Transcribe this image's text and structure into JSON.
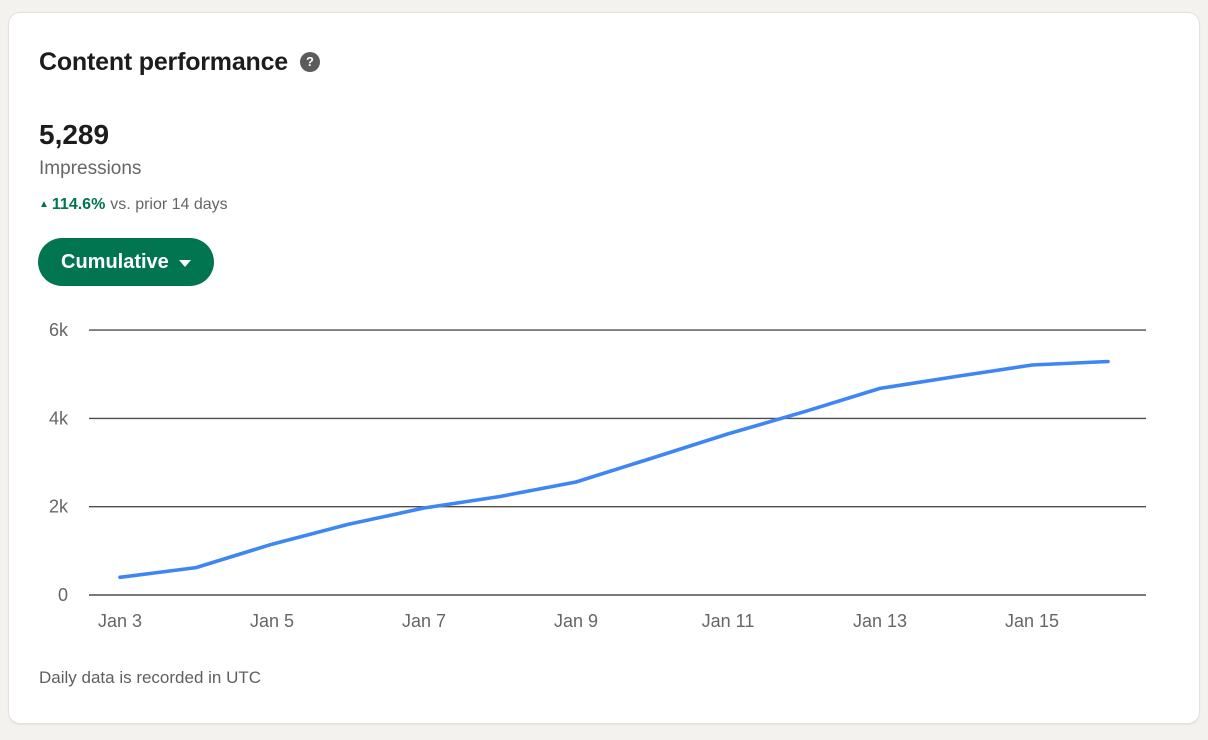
{
  "card": {
    "title": "Content performance",
    "help_icon_glyph": "?",
    "metric": {
      "value": "5,289",
      "label": "Impressions"
    },
    "change": {
      "arrow_icon": "▲",
      "percent": "114.6%",
      "caption": "vs. prior 14 days"
    },
    "view_selector": {
      "label": "Cumulative"
    },
    "footnote": "Daily data is recorded in UTC"
  },
  "colors": {
    "page_bg": "#f4f2ee",
    "card_bg": "#ffffff",
    "accent_green": "#01754f",
    "line_blue": "#3e86f4",
    "grid_line": "#4f4e4a",
    "muted_text": "#666666",
    "heading_text": "#1c1c1c"
  },
  "chart_data": {
    "type": "line",
    "series_name": "Impressions (cumulative)",
    "x": [
      "Jan 3",
      "Jan 4",
      "Jan 5",
      "Jan 6",
      "Jan 7",
      "Jan 8",
      "Jan 9",
      "Jan 10",
      "Jan 11",
      "Jan 12",
      "Jan 13",
      "Jan 14",
      "Jan 15",
      "Jan 16"
    ],
    "values": [
      400,
      620,
      1150,
      1600,
      1970,
      2230,
      2560,
      3100,
      3650,
      4150,
      4680,
      4950,
      5210,
      5289
    ],
    "x_tick_labels": [
      "Jan 3",
      "Jan 5",
      "Jan 7",
      "Jan 9",
      "Jan 11",
      "Jan 13",
      "Jan 15"
    ],
    "y_ticks": [
      0,
      2000,
      4000,
      6000
    ],
    "y_tick_labels": [
      "0",
      "2k",
      "4k",
      "6k"
    ],
    "ylim": [
      0,
      6000
    ],
    "grid": "horizontal",
    "legend": "none"
  }
}
